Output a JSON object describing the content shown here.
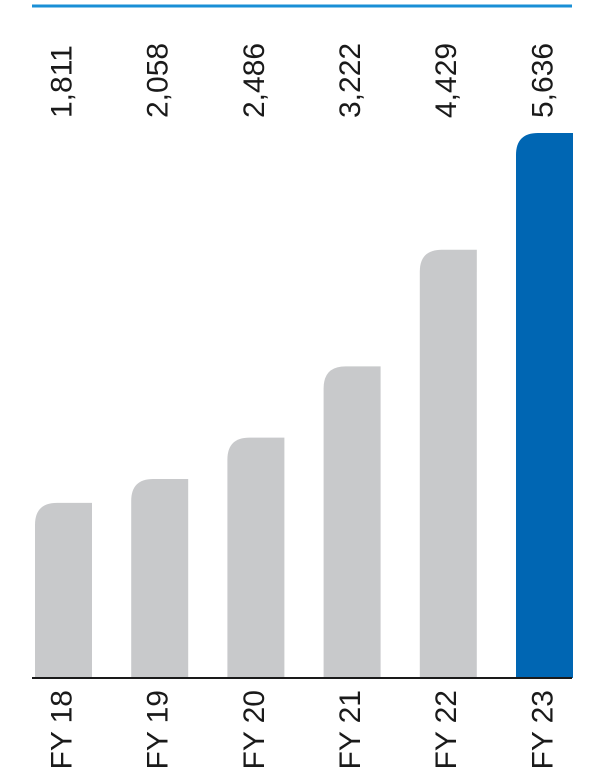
{
  "chart_data": {
    "type": "bar",
    "categories": [
      "FY 18",
      "FY 19",
      "FY 20",
      "FY 21",
      "FY 22",
      "FY 23"
    ],
    "values": [
      1811,
      2058,
      2486,
      3222,
      4429,
      5636
    ],
    "value_labels": [
      "1,811",
      "2,058",
      "2,486",
      "3,222",
      "4,429",
      "5,636"
    ],
    "title": "",
    "xlabel": "",
    "ylabel": "",
    "ylim": [
      0,
      5636
    ],
    "grid": false,
    "legend": "none",
    "colors": {
      "bar": "#c8c9cb",
      "highlight_bar": "#0066b3",
      "top_rule": "#1a8fd6",
      "baseline": "#1a1a1a"
    },
    "highlight_index": 5
  }
}
